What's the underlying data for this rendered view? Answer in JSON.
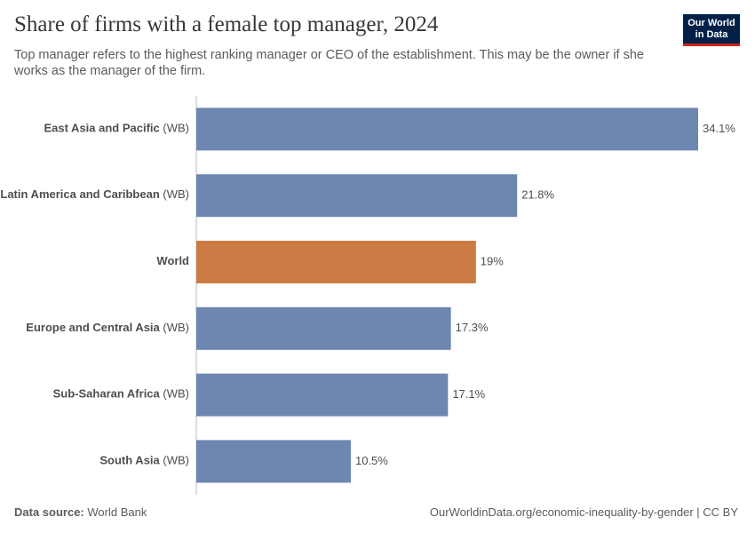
{
  "chart_data": {
    "type": "bar",
    "title": "Share of firms with a female top manager, 2024",
    "subtitle": "Top manager refers to the highest ranking manager or CEO of the establishment. This may be the owner if she works as the manager of the firm.",
    "logo": [
      "Our World",
      "in Data"
    ],
    "categories": [
      "East Asia and Pacific (WB)",
      "Latin America and Caribbean (WB)",
      "World",
      "Europe and Central Asia (WB)",
      "Sub-Saharan Africa (WB)",
      "South Asia (WB)"
    ],
    "values": [
      34.1,
      21.8,
      19,
      17.3,
      17.1,
      10.5
    ],
    "value_labels": [
      "34.1%",
      "21.8%",
      "19%",
      "17.3%",
      "17.1%",
      "10.5%"
    ],
    "colors": [
      "#6d87b1",
      "#6d87b1",
      "#cc7a44",
      "#6d87b1",
      "#6d87b1",
      "#6d87b1"
    ],
    "source_label": "Data source:",
    "source": "World Bank",
    "footer": "OurWorldinData.org/economic-inequality-by-gender | CC BY"
  }
}
